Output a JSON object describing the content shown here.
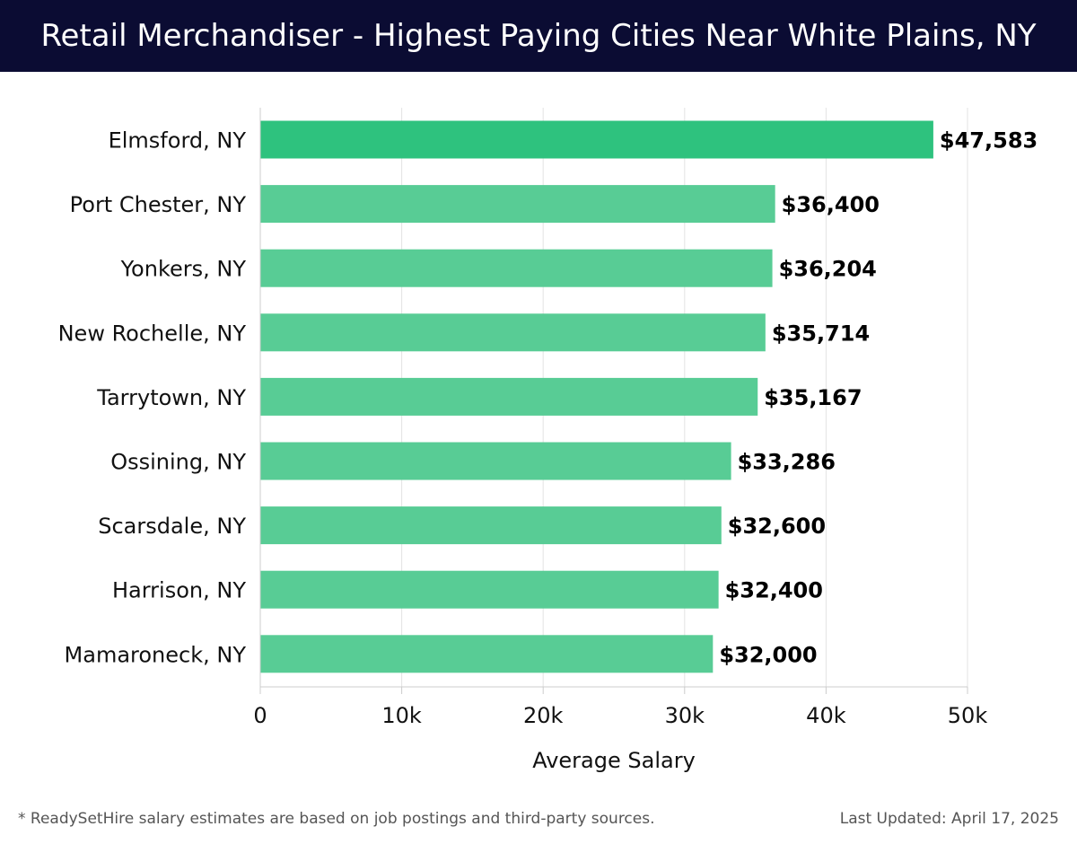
{
  "header": {
    "title": "Retail Merchandiser - Highest Paying Cities Near White Plains, NY"
  },
  "chart_data": {
    "type": "bar",
    "orientation": "horizontal",
    "categories": [
      "Elmsford, NY",
      "Port Chester, NY",
      "Yonkers, NY",
      "New Rochelle, NY",
      "Tarrytown, NY",
      "Ossining, NY",
      "Scarsdale, NY",
      "Harrison, NY",
      "Mamaroneck, NY"
    ],
    "values": [
      47583,
      36400,
      36204,
      35714,
      35167,
      33286,
      32600,
      32400,
      32000
    ],
    "value_labels": [
      "$47,583",
      "$36,400",
      "$36,204",
      "$35,714",
      "$35,167",
      "$33,286",
      "$32,600",
      "$32,400",
      "$32,000"
    ],
    "xlabel": "Average Salary",
    "ylabel": "",
    "xlim": [
      0,
      50000
    ],
    "x_ticks": [
      0,
      10000,
      20000,
      30000,
      40000,
      50000
    ],
    "x_tick_labels": [
      "0",
      "10k",
      "20k",
      "30k",
      "40k",
      "50k"
    ],
    "grid": "vertical",
    "colors": {
      "highlight": "#2ec27e",
      "bar": "#58cc95",
      "grid": "#e3e3e3",
      "axis": "#cccccc",
      "label": "#111111"
    }
  },
  "footer": {
    "note": "* ReadySetHire salary estimates are based on job postings and third-party sources.",
    "updated": "Last Updated: April 17, 2025"
  }
}
